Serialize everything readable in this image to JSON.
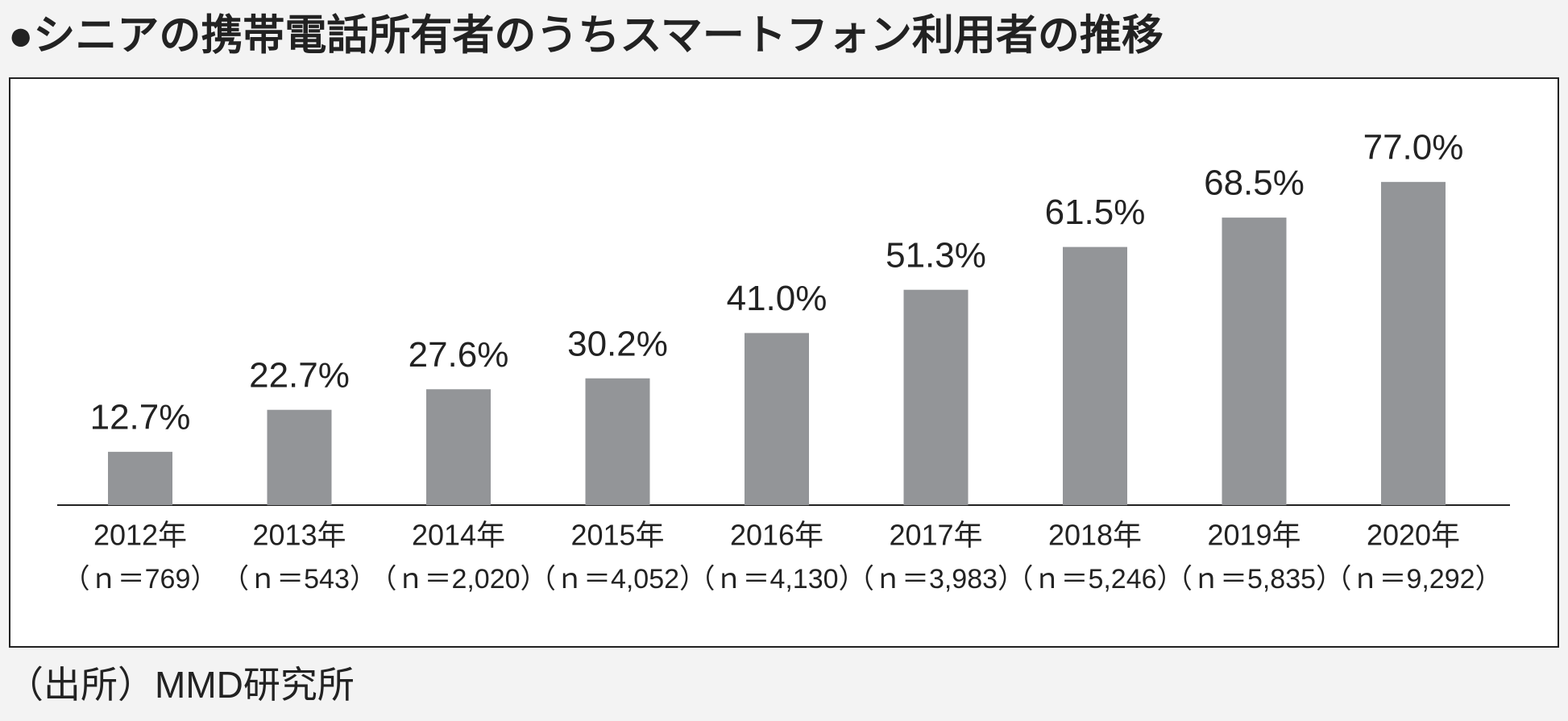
{
  "chart_data": {
    "type": "bar",
    "title": "●シニアの携帯電話所有者のうちスマートフォン利用者の推移",
    "categories": [
      "2012年",
      "2013年",
      "2014年",
      "2015年",
      "2016年",
      "2017年",
      "2018年",
      "2019年",
      "2020年"
    ],
    "category_notes": [
      "（ｎ＝769）",
      "（ｎ＝543）",
      "（ｎ＝2,020）",
      "（ｎ＝4,052）",
      "（ｎ＝4,130）",
      "（ｎ＝3,983）",
      "（ｎ＝5,246）",
      "（ｎ＝5,835）",
      "（ｎ＝9,292）"
    ],
    "values": [
      12.7,
      22.7,
      27.6,
      30.2,
      41.0,
      51.3,
      61.5,
      68.5,
      77.0
    ],
    "value_labels": [
      "12.7%",
      "22.7%",
      "27.6%",
      "30.2%",
      "41.0%",
      "51.3%",
      "61.5%",
      "68.5%",
      "77.0%"
    ],
    "color": "#939598",
    "source": "（出所）MMD研究所"
  }
}
